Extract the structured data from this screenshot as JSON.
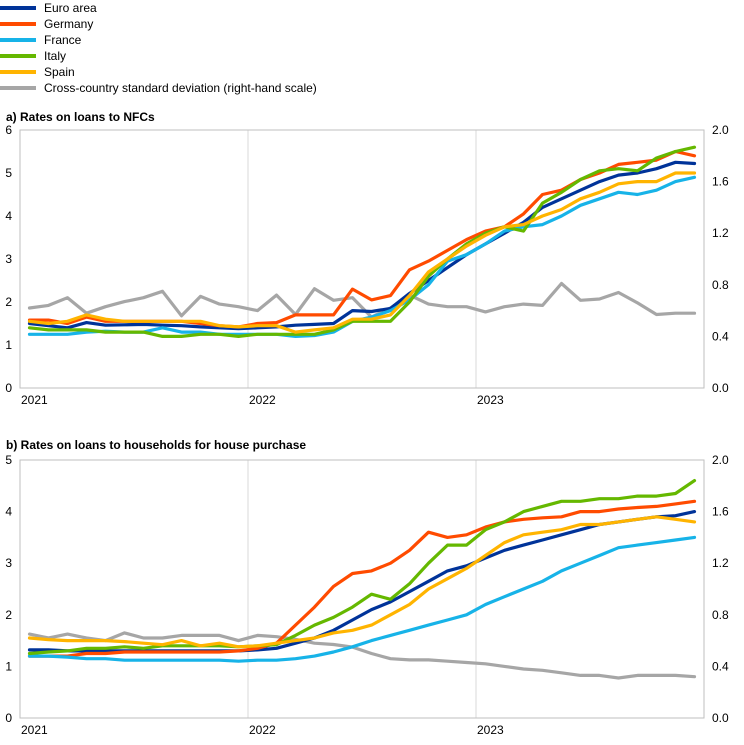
{
  "legend": [
    {
      "name": "Euro area",
      "color": "#003399"
    },
    {
      "name": "Germany",
      "color": "#ff4b00"
    },
    {
      "name": "France",
      "color": "#17b3e8"
    },
    {
      "name": "Italy",
      "color": "#65b800"
    },
    {
      "name": "Spain",
      "color": "#ffb400"
    },
    {
      "name": "Cross-country standard deviation (right-hand scale)",
      "color": "#a6a6a6"
    }
  ],
  "chart_data": [
    {
      "type": "line",
      "title": "a) Rates on loans to NFCs",
      "x_labels": [
        "2021",
        "2022",
        "2023"
      ],
      "x_label_index": [
        0,
        12,
        24
      ],
      "n_points": 36,
      "ylim": [
        0,
        6
      ],
      "y_ticks": [
        "0",
        "1",
        "2",
        "3",
        "4",
        "5",
        "6"
      ],
      "y2lim": [
        0,
        2
      ],
      "y2_ticks": [
        "0.0",
        "0.4",
        "0.8",
        "1.2",
        "1.6",
        "2.0"
      ],
      "series": [
        {
          "name": "Euro area",
          "axis": "left",
          "color": "#003399",
          "values": [
            1.5,
            1.45,
            1.4,
            1.52,
            1.46,
            1.47,
            1.48,
            1.46,
            1.45,
            1.42,
            1.4,
            1.38,
            1.4,
            1.42,
            1.46,
            1.48,
            1.5,
            1.8,
            1.78,
            1.85,
            2.2,
            2.5,
            2.8,
            3.1,
            3.35,
            3.6,
            3.85,
            4.2,
            4.4,
            4.6,
            4.8,
            4.95,
            5.0,
            5.1,
            5.25,
            5.22
          ]
        },
        {
          "name": "Germany",
          "axis": "left",
          "color": "#ff4b00",
          "values": [
            1.58,
            1.58,
            1.5,
            1.65,
            1.55,
            1.55,
            1.55,
            1.55,
            1.55,
            1.5,
            1.45,
            1.42,
            1.5,
            1.52,
            1.7,
            1.7,
            1.7,
            2.3,
            2.05,
            2.15,
            2.75,
            2.95,
            3.2,
            3.45,
            3.65,
            3.75,
            4.05,
            4.5,
            4.6,
            4.85,
            5.0,
            5.2,
            5.25,
            5.3,
            5.5,
            5.4
          ]
        },
        {
          "name": "France",
          "axis": "left",
          "color": "#17b3e8",
          "values": [
            1.25,
            1.25,
            1.25,
            1.3,
            1.32,
            1.3,
            1.3,
            1.4,
            1.3,
            1.3,
            1.25,
            1.25,
            1.25,
            1.25,
            1.2,
            1.22,
            1.3,
            1.55,
            1.65,
            1.8,
            2.05,
            2.4,
            2.95,
            3.1,
            3.35,
            3.65,
            3.75,
            3.8,
            4.0,
            4.25,
            4.4,
            4.55,
            4.5,
            4.6,
            4.8,
            4.9
          ]
        },
        {
          "name": "Italy",
          "axis": "left",
          "color": "#65b800",
          "values": [
            1.4,
            1.35,
            1.35,
            1.35,
            1.3,
            1.3,
            1.3,
            1.2,
            1.2,
            1.25,
            1.25,
            1.2,
            1.25,
            1.25,
            1.25,
            1.25,
            1.35,
            1.55,
            1.55,
            1.55,
            2.0,
            2.6,
            3.0,
            3.35,
            3.6,
            3.75,
            3.65,
            4.3,
            4.55,
            4.85,
            5.05,
            5.1,
            5.05,
            5.35,
            5.5,
            5.6
          ]
        },
        {
          "name": "Spain",
          "axis": "left",
          "color": "#ffb400",
          "values": [
            1.55,
            1.5,
            1.55,
            1.7,
            1.6,
            1.55,
            1.55,
            1.55,
            1.55,
            1.55,
            1.45,
            1.42,
            1.45,
            1.45,
            1.3,
            1.35,
            1.4,
            1.6,
            1.6,
            1.7,
            2.15,
            2.7,
            3.0,
            3.3,
            3.55,
            3.75,
            3.8,
            4.0,
            4.15,
            4.4,
            4.55,
            4.75,
            4.8,
            4.8,
            5.0,
            5.0
          ]
        },
        {
          "name": "Cross-country standard deviation (right-hand scale)",
          "axis": "right",
          "color": "#a6a6a6",
          "values": [
            0.62,
            0.64,
            0.7,
            0.58,
            0.63,
            0.67,
            0.7,
            0.75,
            0.56,
            0.71,
            0.65,
            0.63,
            0.6,
            0.72,
            0.57,
            0.77,
            0.68,
            0.7,
            0.55,
            0.62,
            0.72,
            0.65,
            0.63,
            0.63,
            0.59,
            0.63,
            0.65,
            0.64,
            0.81,
            0.68,
            0.69,
            0.74,
            0.66,
            0.57,
            0.58,
            0.58
          ]
        }
      ]
    },
    {
      "type": "line",
      "title": "b) Rates on loans to households for house purchase",
      "x_labels": [
        "2021",
        "2022",
        "2023"
      ],
      "x_label_index": [
        0,
        12,
        24
      ],
      "n_points": 36,
      "ylim": [
        0,
        5
      ],
      "y_ticks": [
        "0",
        "1",
        "2",
        "3",
        "4",
        "5"
      ],
      "y2lim": [
        0,
        2
      ],
      "y2_ticks": [
        "0.0",
        "0.4",
        "0.8",
        "1.2",
        "1.6",
        "2.0"
      ],
      "series": [
        {
          "name": "Euro area",
          "axis": "left",
          "color": "#003399",
          "values": [
            1.32,
            1.32,
            1.3,
            1.3,
            1.3,
            1.3,
            1.3,
            1.3,
            1.3,
            1.3,
            1.3,
            1.3,
            1.32,
            1.35,
            1.45,
            1.55,
            1.7,
            1.9,
            2.1,
            2.25,
            2.45,
            2.65,
            2.85,
            2.95,
            3.1,
            3.25,
            3.35,
            3.45,
            3.55,
            3.65,
            3.75,
            3.8,
            3.85,
            3.9,
            3.92,
            4.0
          ]
        },
        {
          "name": "Germany",
          "axis": "left",
          "color": "#ff4b00",
          "values": [
            1.2,
            1.2,
            1.2,
            1.25,
            1.25,
            1.28,
            1.28,
            1.28,
            1.28,
            1.28,
            1.28,
            1.3,
            1.35,
            1.45,
            1.8,
            2.15,
            2.55,
            2.8,
            2.85,
            3.0,
            3.25,
            3.6,
            3.5,
            3.55,
            3.7,
            3.8,
            3.85,
            3.88,
            3.9,
            4.0,
            4.0,
            4.05,
            4.08,
            4.1,
            4.15,
            4.2
          ]
        },
        {
          "name": "France",
          "axis": "left",
          "color": "#17b3e8",
          "values": [
            1.2,
            1.2,
            1.18,
            1.15,
            1.15,
            1.12,
            1.12,
            1.12,
            1.12,
            1.12,
            1.12,
            1.1,
            1.12,
            1.12,
            1.15,
            1.2,
            1.28,
            1.38,
            1.5,
            1.6,
            1.7,
            1.8,
            1.9,
            2.0,
            2.2,
            2.35,
            2.5,
            2.65,
            2.85,
            3.0,
            3.15,
            3.3,
            3.35,
            3.4,
            3.45,
            3.5
          ]
        },
        {
          "name": "Italy",
          "axis": "left",
          "color": "#65b800",
          "values": [
            1.25,
            1.28,
            1.3,
            1.35,
            1.35,
            1.38,
            1.35,
            1.4,
            1.4,
            1.4,
            1.4,
            1.38,
            1.4,
            1.42,
            1.6,
            1.8,
            1.95,
            2.15,
            2.4,
            2.3,
            2.6,
            3.0,
            3.35,
            3.35,
            3.65,
            3.8,
            4.0,
            4.1,
            4.2,
            4.2,
            4.25,
            4.25,
            4.3,
            4.3,
            4.35,
            4.6
          ]
        },
        {
          "name": "Spain",
          "axis": "left",
          "color": "#ffb400",
          "values": [
            1.55,
            1.52,
            1.5,
            1.5,
            1.5,
            1.48,
            1.45,
            1.42,
            1.5,
            1.4,
            1.45,
            1.38,
            1.4,
            1.45,
            1.5,
            1.55,
            1.65,
            1.7,
            1.8,
            2.0,
            2.2,
            2.5,
            2.7,
            2.9,
            3.15,
            3.4,
            3.55,
            3.6,
            3.65,
            3.75,
            3.75,
            3.8,
            3.85,
            3.9,
            3.85,
            3.8
          ]
        },
        {
          "name": "Cross-country standard deviation (right-hand scale)",
          "axis": "right",
          "color": "#a6a6a6",
          "values": [
            0.65,
            0.62,
            0.65,
            0.62,
            0.6,
            0.66,
            0.62,
            0.62,
            0.64,
            0.64,
            0.64,
            0.6,
            0.64,
            0.63,
            0.61,
            0.58,
            0.57,
            0.55,
            0.5,
            0.46,
            0.45,
            0.45,
            0.44,
            0.43,
            0.42,
            0.4,
            0.38,
            0.37,
            0.35,
            0.33,
            0.33,
            0.31,
            0.33,
            0.33,
            0.33,
            0.32
          ]
        }
      ]
    }
  ]
}
